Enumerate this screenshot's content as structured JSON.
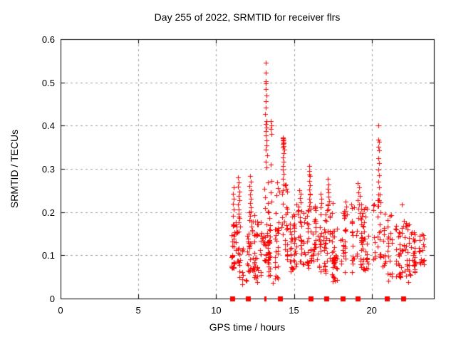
{
  "page": {
    "background": "#ffffff"
  },
  "chart_data": {
    "type": "scatter",
    "title": "Day 255 of 2022, SRMTID for receiver flrs",
    "xlabel": "GPS time / hours",
    "ylabel": "SRMTID / TECUs",
    "xlim": [
      0,
      24
    ],
    "ylim": [
      0,
      0.6
    ],
    "xticks": [
      {
        "value": 0,
        "label": "0"
      },
      {
        "value": 5,
        "label": "5"
      },
      {
        "value": 10,
        "label": "10"
      },
      {
        "value": 15,
        "label": "15"
      },
      {
        "value": 20,
        "label": "20"
      }
    ],
    "yticks": [
      {
        "value": 0,
        "label": "0"
      },
      {
        "value": 0.1,
        "label": "0.1"
      },
      {
        "value": 0.2,
        "label": "0.2"
      },
      {
        "value": 0.3,
        "label": "0.3"
      },
      {
        "value": 0.4,
        "label": "0.4"
      },
      {
        "value": 0.5,
        "label": "0.5"
      },
      {
        "value": 0.6,
        "label": "0.6"
      }
    ],
    "grid": true,
    "legend": "none",
    "marker": {
      "symbol": "plus",
      "color": "#ff0000",
      "size": 7
    },
    "colors": {
      "grid": "#9e9e9e",
      "axis": "#000000",
      "marker": "#ff0000"
    },
    "seed": 20220255,
    "feature_points": [
      [
        13.18,
        0.545
      ],
      [
        13.2,
        0.522
      ],
      [
        13.17,
        0.503
      ],
      [
        13.21,
        0.497
      ],
      [
        13.19,
        0.484
      ],
      [
        13.22,
        0.469
      ],
      [
        13.18,
        0.457
      ],
      [
        13.2,
        0.442
      ],
      [
        13.16,
        0.427
      ],
      [
        13.23,
        0.411
      ],
      [
        13.19,
        0.404
      ],
      [
        13.24,
        0.395
      ],
      [
        13.21,
        0.387
      ],
      [
        13.17,
        0.377
      ],
      [
        13.25,
        0.366
      ],
      [
        13.22,
        0.355
      ],
      [
        13.19,
        0.344
      ],
      [
        13.26,
        0.331
      ],
      [
        13.21,
        0.317
      ],
      [
        13.24,
        0.304
      ],
      [
        13.52,
        0.411
      ],
      [
        13.55,
        0.401
      ],
      [
        13.5,
        0.392
      ],
      [
        13.57,
        0.381
      ],
      [
        13.53,
        0.31
      ],
      [
        13.56,
        0.272
      ],
      [
        13.51,
        0.246
      ],
      [
        13.58,
        0.224
      ],
      [
        14.3,
        0.373
      ],
      [
        14.33,
        0.368
      ],
      [
        14.27,
        0.366
      ],
      [
        14.32,
        0.362
      ],
      [
        14.35,
        0.359
      ],
      [
        14.29,
        0.357
      ],
      [
        14.31,
        0.371
      ],
      [
        14.34,
        0.353
      ],
      [
        14.28,
        0.349
      ],
      [
        14.36,
        0.345
      ],
      [
        14.32,
        0.337
      ],
      [
        14.3,
        0.327
      ],
      [
        14.34,
        0.317
      ],
      [
        14.31,
        0.307
      ],
      [
        14.28,
        0.299
      ],
      [
        14.35,
        0.289
      ],
      [
        14.3,
        0.277
      ],
      [
        14.33,
        0.264
      ],
      [
        14.29,
        0.251
      ],
      [
        14.26,
        0.243
      ],
      [
        13.93,
        0.268
      ],
      [
        13.98,
        0.256
      ],
      [
        14.05,
        0.247
      ],
      [
        13.88,
        0.239
      ],
      [
        15.97,
        0.307
      ],
      [
        16.0,
        0.295
      ],
      [
        15.98,
        0.286
      ],
      [
        16.02,
        0.283
      ],
      [
        15.99,
        0.272
      ],
      [
        16.03,
        0.262
      ],
      [
        15.98,
        0.252
      ],
      [
        16.01,
        0.243
      ],
      [
        16.04,
        0.241
      ],
      [
        15.99,
        0.231
      ],
      [
        16.02,
        0.222
      ],
      [
        15.97,
        0.214
      ],
      [
        11.42,
        0.281
      ],
      [
        11.46,
        0.268
      ],
      [
        11.4,
        0.258
      ],
      [
        11.48,
        0.247
      ],
      [
        11.44,
        0.237
      ],
      [
        11.5,
        0.227
      ],
      [
        11.41,
        0.217
      ],
      [
        11.47,
        0.206
      ],
      [
        11.43,
        0.196
      ],
      [
        11.49,
        0.186
      ],
      [
        11.45,
        0.176
      ],
      [
        11.52,
        0.166
      ],
      [
        11.12,
        0.257
      ],
      [
        11.08,
        0.243
      ],
      [
        11.15,
        0.231
      ],
      [
        11.1,
        0.219
      ],
      [
        11.13,
        0.206
      ],
      [
        11.07,
        0.192
      ],
      [
        12.18,
        0.284
      ],
      [
        12.22,
        0.271
      ],
      [
        12.16,
        0.261
      ],
      [
        12.24,
        0.251
      ],
      [
        12.2,
        0.241
      ],
      [
        12.25,
        0.231
      ],
      [
        12.17,
        0.221
      ],
      [
        12.21,
        0.211
      ],
      [
        12.23,
        0.201
      ],
      [
        12.19,
        0.191
      ],
      [
        15.35,
        0.251
      ],
      [
        15.42,
        0.242
      ],
      [
        15.38,
        0.232
      ],
      [
        15.45,
        0.223
      ],
      [
        15.32,
        0.213
      ],
      [
        15.48,
        0.203
      ],
      [
        16.72,
        0.242
      ],
      [
        16.78,
        0.231
      ],
      [
        16.75,
        0.221
      ],
      [
        16.7,
        0.211
      ],
      [
        17.18,
        0.277
      ],
      [
        17.22,
        0.264
      ],
      [
        17.16,
        0.254
      ],
      [
        17.24,
        0.245
      ],
      [
        17.2,
        0.236
      ],
      [
        17.25,
        0.226
      ],
      [
        17.17,
        0.216
      ],
      [
        17.21,
        0.206
      ],
      [
        18.33,
        0.224
      ],
      [
        18.37,
        0.213
      ],
      [
        18.31,
        0.203
      ],
      [
        18.39,
        0.195
      ],
      [
        19.12,
        0.267
      ],
      [
        19.18,
        0.257
      ],
      [
        19.15,
        0.246
      ],
      [
        19.22,
        0.237
      ],
      [
        19.1,
        0.227
      ],
      [
        19.2,
        0.217
      ],
      [
        19.16,
        0.207
      ],
      [
        19.24,
        0.197
      ],
      [
        19.13,
        0.187
      ],
      [
        20.44,
        0.4
      ],
      [
        20.42,
        0.368
      ],
      [
        20.46,
        0.363
      ],
      [
        20.43,
        0.351
      ],
      [
        20.47,
        0.343
      ],
      [
        20.45,
        0.324
      ],
      [
        20.48,
        0.314
      ],
      [
        20.44,
        0.299
      ],
      [
        20.46,
        0.285
      ],
      [
        20.43,
        0.271
      ],
      [
        20.49,
        0.257
      ],
      [
        20.45,
        0.241
      ],
      [
        20.47,
        0.227
      ],
      [
        20.42,
        0.214
      ],
      [
        21.95,
        0.218
      ],
      [
        14.78,
        0.062
      ],
      [
        14.82,
        0.073
      ],
      [
        14.8,
        0.085
      ],
      [
        12.55,
        0.046
      ],
      [
        12.62,
        0.038
      ],
      [
        11.66,
        0.033
      ],
      [
        13.65,
        0.036
      ],
      [
        17.52,
        0.049
      ],
      [
        21.05,
        0.042
      ],
      [
        22.35,
        0.038
      ]
    ],
    "band_clusters": [
      [
        10.98,
        11.2,
        20,
        0.07,
        0.16
      ],
      [
        11.1,
        11.55,
        22,
        0.08,
        0.2
      ],
      [
        11.45,
        12.1,
        26,
        0.04,
        0.15
      ],
      [
        12.05,
        12.5,
        26,
        0.06,
        0.2
      ],
      [
        12.45,
        13.05,
        30,
        0.05,
        0.185
      ],
      [
        13.05,
        13.35,
        28,
        0.08,
        0.295
      ],
      [
        13.35,
        13.8,
        22,
        0.05,
        0.21
      ],
      [
        13.75,
        14.2,
        26,
        0.045,
        0.205
      ],
      [
        14.2,
        14.6,
        24,
        0.09,
        0.27
      ],
      [
        14.55,
        15.1,
        28,
        0.065,
        0.195
      ],
      [
        15.0,
        15.65,
        28,
        0.08,
        0.225
      ],
      [
        15.6,
        16.15,
        28,
        0.07,
        0.21
      ],
      [
        16.1,
        16.65,
        30,
        0.085,
        0.215
      ],
      [
        16.6,
        17.25,
        32,
        0.055,
        0.2
      ],
      [
        17.1,
        17.55,
        20,
        0.08,
        0.23
      ],
      [
        17.45,
        18.2,
        32,
        0.04,
        0.175
      ],
      [
        18.15,
        18.75,
        26,
        0.06,
        0.21
      ],
      [
        18.7,
        19.45,
        32,
        0.07,
        0.22
      ],
      [
        19.4,
        20.15,
        32,
        0.065,
        0.215
      ],
      [
        20.05,
        20.6,
        26,
        0.09,
        0.25
      ],
      [
        20.55,
        21.35,
        32,
        0.05,
        0.2
      ],
      [
        21.25,
        21.95,
        28,
        0.05,
        0.18
      ],
      [
        21.9,
        22.6,
        32,
        0.05,
        0.185
      ],
      [
        22.55,
        23.15,
        26,
        0.06,
        0.16
      ],
      [
        23.05,
        23.5,
        16,
        0.075,
        0.15
      ]
    ],
    "zero_markers": [
      {
        "x": 11.07,
        "w": 7
      },
      {
        "x": 12.08,
        "w": 7
      },
      {
        "x": 13.18,
        "w": 3
      },
      {
        "x": 14.12,
        "w": 7
      },
      {
        "x": 16.08,
        "w": 7
      },
      {
        "x": 17.12,
        "w": 7
      },
      {
        "x": 18.15,
        "w": 7
      },
      {
        "x": 19.13,
        "w": 7
      },
      {
        "x": 21.02,
        "w": 7
      },
      {
        "x": 22.07,
        "w": 7
      }
    ]
  }
}
